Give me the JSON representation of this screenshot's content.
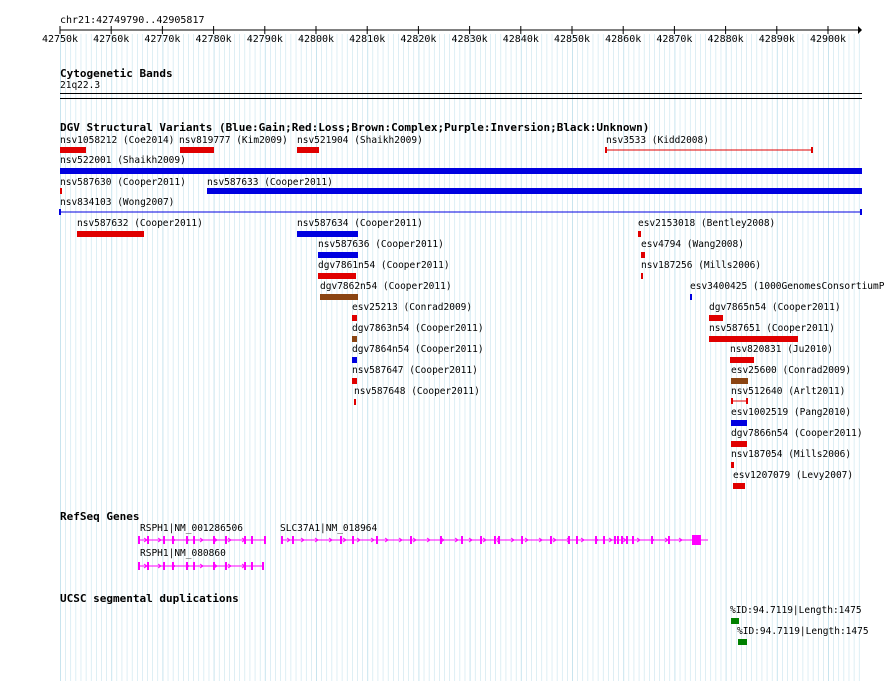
{
  "location": "chr21:42749790..42905817",
  "ruler_ticks": [
    "42750k",
    "42760k",
    "42770k",
    "42780k",
    "42790k",
    "42800k",
    "42810k",
    "42820k",
    "42830k",
    "42840k",
    "42850k",
    "42860k",
    "42870k",
    "42880k",
    "42890k",
    "42900k"
  ],
  "tracks": {
    "cytogenetic": {
      "title": "Cytogenetic Bands",
      "band": "21q22.3"
    },
    "dgv": {
      "title": "DGV Structural Variants (Blue:Gain;Red:Loss;Brown:Complex;Purple:Inversion;Black:Unknown)"
    },
    "refseq": {
      "title": "RefSeq Genes"
    },
    "segdup": {
      "title": "UCSC segmental duplications"
    }
  },
  "colors": {
    "gain": "#0000e0",
    "loss": "#e00000",
    "complex": "#8b4513",
    "gene": "#ff00ff",
    "segdup": "#008000",
    "grid": "#c8e4ee"
  },
  "variants": [
    "nsv1058212 (Coe2014)",
    "nsv819777 (Kim2009)",
    "nsv521904 (Shaikh2009)",
    "nsv3533 (Kidd2008)",
    "nsv522001 (Shaikh2009)",
    "nsv587630 (Cooper2011)",
    "nsv587633 (Cooper2011)",
    "nsv834103 (Wong2007)",
    "nsv587632 (Cooper2011)",
    "nsv587634 (Cooper2011)",
    "esv2153018 (Bentley2008)",
    "nsv587636 (Cooper2011)",
    "esv4794 (Wang2008)",
    "dgv7861n54 (Cooper2011)",
    "nsv187256 (Mills2006)",
    "dgv7862n54 (Cooper2011)",
    "esv3400425 (1000GenomesConsortiumP",
    "esv25213 (Conrad2009)",
    "dgv7865n54 (Cooper2011)",
    "dgv7863n54 (Cooper2011)",
    "nsv587651 (Cooper2011)",
    "dgv7864n54 (Cooper2011)",
    "nsv820831 (Ju2010)",
    "nsv587647 (Cooper2011)",
    "esv25600 (Conrad2009)",
    "nsv587648 (Cooper2011)",
    "nsv512640 (Arlt2011)",
    "esv1002519 (Pang2010)",
    "dgv7866n54 (Cooper2011)",
    "nsv187054 (Mills2006)",
    "esv1207079 (Levy2007)"
  ],
  "genes": [
    "RSPH1|NM_001286506",
    "SLC37A1|NM_018964",
    "RSPH1|NM_080860"
  ],
  "segdups": [
    "%ID:94.7119|Length:1475",
    "%ID:94.7119|Length:1475"
  ]
}
